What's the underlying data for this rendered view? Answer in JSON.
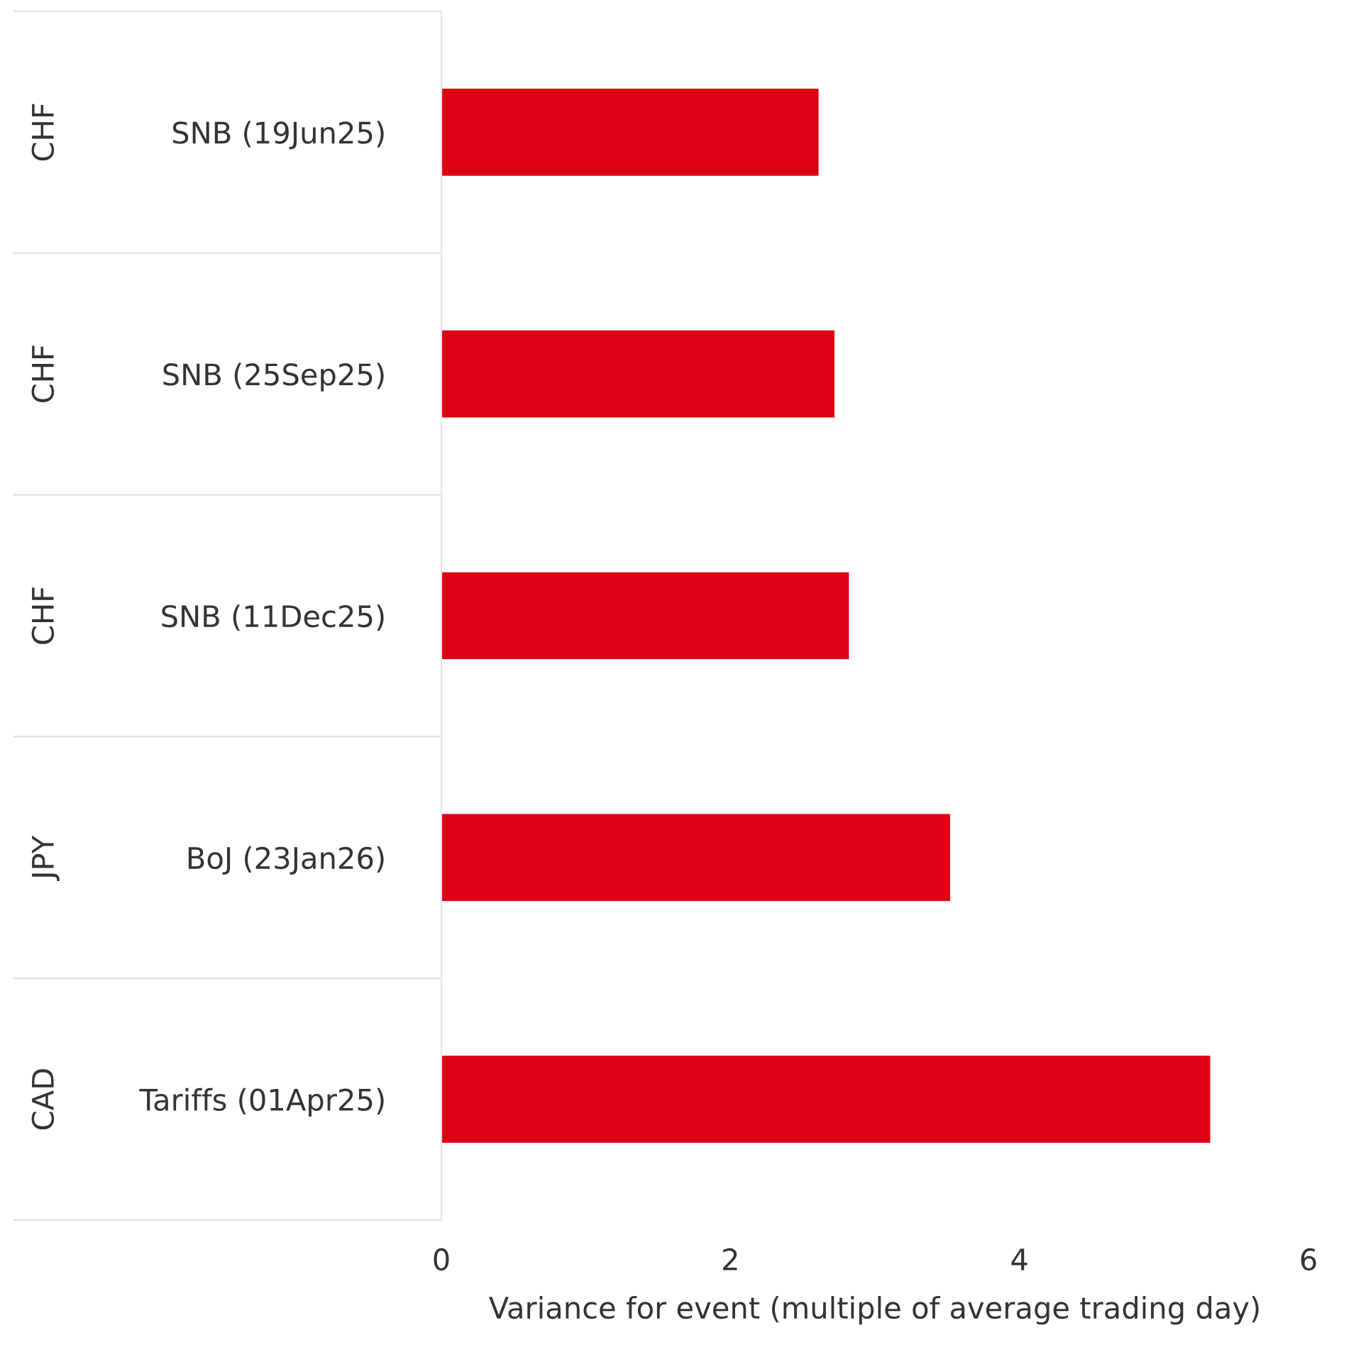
{
  "chart_data": {
    "type": "bar",
    "orientation": "horizontal",
    "xlabel": "Variance for event (multiple of average trading day)",
    "categories": [
      "SNB (19Jun25)",
      "SNB (25Sep25)",
      "SNB (11Dec25)",
      "BoJ (23Jan26)",
      "Tariffs (01Apr25)"
    ],
    "values": [
      2.61,
      2.72,
      2.82,
      3.52,
      5.32
    ],
    "color": "#dc0014",
    "xlim": [
      0,
      6
    ],
    "xticks": [
      0,
      2,
      4,
      6
    ],
    "grid": false,
    "legend": false,
    "annotations": [
      "CHF",
      "CHF",
      "CHF",
      "JPY",
      "CAD"
    ]
  }
}
